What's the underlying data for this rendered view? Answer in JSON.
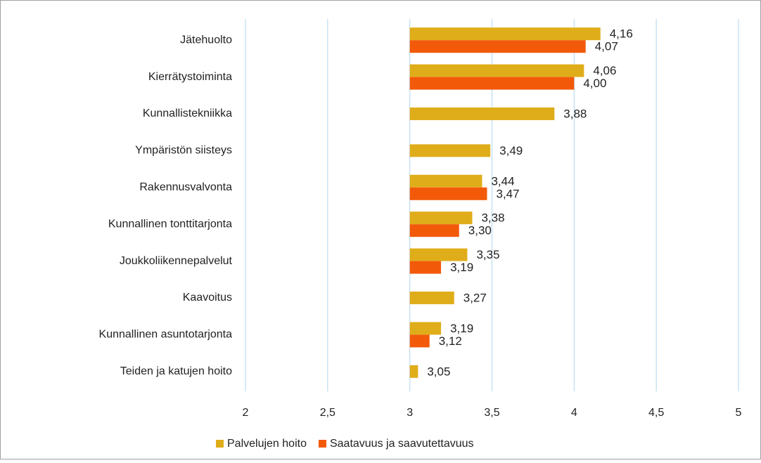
{
  "chart_data": {
    "type": "hbar",
    "categories": [
      "Jätehuolto",
      "Kierrätystoiminta",
      "Kunnallistekniikka",
      "Ympäristön siisteys",
      "Rakennusvalvonta",
      "Kunnallinen tonttitarjonta",
      "Joukkoliikennepalvelut",
      "Kaavoitus",
      "Kunnallinen asuntotarjonta",
      "Teiden ja katujen hoito"
    ],
    "series": [
      {
        "name": "Palvelujen hoito",
        "color": "#e0ad1a",
        "values": [
          4.16,
          4.06,
          3.88,
          3.49,
          3.44,
          3.38,
          3.35,
          3.27,
          3.19,
          3.05
        ],
        "value_labels": [
          "4,16",
          "4,06",
          "3,88",
          "3,49",
          "3,44",
          "3,38",
          "3,35",
          "3,27",
          "3,19",
          "3,05"
        ]
      },
      {
        "name": "Saatavuus ja saavutettavuus",
        "color": "#f25a0a",
        "values": [
          4.07,
          4.0,
          null,
          null,
          3.47,
          3.3,
          3.19,
          null,
          3.12,
          null
        ],
        "value_labels": [
          "4,07",
          "4,00",
          null,
          null,
          "3,47",
          "3,30",
          "3,19",
          null,
          "3,12",
          null
        ]
      }
    ],
    "xlim": [
      2,
      5
    ],
    "xticks": [
      2,
      {
        "value": 2.5,
        "label": "2,5"
      },
      3,
      {
        "value": 3.5,
        "label": "3,5"
      },
      4,
      {
        "value": 4.5,
        "label": "4,5"
      },
      5
    ],
    "baseline": 3,
    "grid": true,
    "legend": "bottom"
  }
}
